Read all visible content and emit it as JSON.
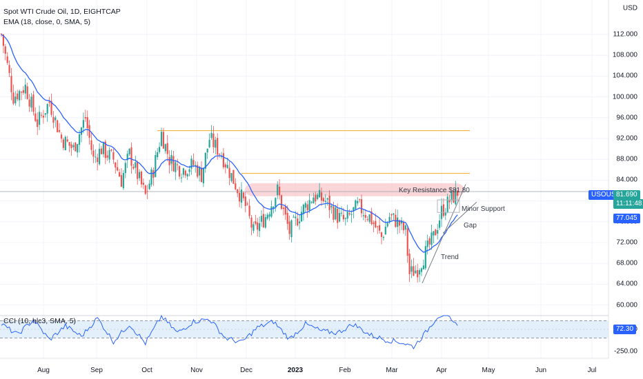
{
  "header": {
    "symbol_line": "Spot WTI Crude Oil, 1D, EIGHTCAP",
    "indicator_line": "EMA (18, close, 0, SMA, 5)",
    "cci_line": "CCI (10, hlc3, SMA, 5)"
  },
  "axis": {
    "currency": "USD",
    "price_ticks": [
      "112.000",
      "108.000",
      "104.000",
      "100.000",
      "96.000",
      "92.000",
      "88.000",
      "84.000",
      "76.000",
      "72.000",
      "68.000",
      "64.000",
      "60.000"
    ],
    "month_ticks": [
      "Aug",
      "Sep",
      "Oct",
      "Nov",
      "Dec",
      "2023",
      "Feb",
      "Mar",
      "Apr",
      "May",
      "Jun",
      "Jul"
    ],
    "cci_ticks": [
      "0.00",
      "-250.00"
    ]
  },
  "tags": {
    "symbol": "USOUSD",
    "price": "81.690",
    "countdown": "11:11:48",
    "ema": "77.045",
    "cci": "72.30"
  },
  "annotations": {
    "resistance": "Key Resistance $81.80",
    "minor_support": "Minor Support",
    "gap": "Gap",
    "trend": "Trend"
  },
  "colors": {
    "up": "#26a69a",
    "down": "#ef5350",
    "ema": "#2962ff",
    "resistance_zone": "#f8c8cc",
    "level_line": "#f5a623",
    "symbol_tag": "#2962ff",
    "cci_band": "#e3f0fc"
  },
  "chart_data": {
    "type": "candlestick",
    "title": "Spot WTI Crude Oil, 1D, EIGHTCAP",
    "ylim": [
      60,
      114
    ],
    "x_start": "2022-07-06",
    "x_end": "2023-04-11",
    "ema_period": 18,
    "levels": [
      93.5,
      85.3,
      81.8
    ],
    "close_path": [
      [
        0,
        112
      ],
      [
        6,
        100
      ],
      [
        12,
        102
      ],
      [
        18,
        95
      ],
      [
        24,
        99
      ],
      [
        30,
        92
      ],
      [
        36,
        90
      ],
      [
        42,
        96
      ],
      [
        46,
        88
      ],
      [
        50,
        90
      ],
      [
        56,
        88
      ],
      [
        60,
        84
      ],
      [
        64,
        89
      ],
      [
        68,
        85
      ],
      [
        72,
        81
      ],
      [
        76,
        86
      ],
      [
        80,
        93
      ],
      [
        84,
        88
      ],
      [
        90,
        86
      ],
      [
        96,
        87
      ],
      [
        100,
        85
      ],
      [
        104,
        92
      ],
      [
        110,
        89
      ],
      [
        116,
        84
      ],
      [
        122,
        79
      ],
      [
        126,
        74
      ],
      [
        132,
        77
      ],
      [
        138,
        82
      ],
      [
        144,
        74
      ],
      [
        150,
        78
      ],
      [
        156,
        81
      ],
      [
        162,
        80
      ],
      [
        168,
        77
      ],
      [
        172,
        76
      ],
      [
        178,
        79
      ],
      [
        184,
        77
      ],
      [
        190,
        73
      ],
      [
        194,
        77
      ],
      [
        198,
        76
      ],
      [
        202,
        74
      ],
      [
        204,
        66
      ],
      [
        208,
        67
      ],
      [
        212,
        70
      ],
      [
        216,
        73
      ],
      [
        220,
        78
      ],
      [
        224,
        80
      ],
      [
        228,
        81.7
      ]
    ],
    "cci_path": [
      [
        0,
        60
      ],
      [
        8,
        -60
      ],
      [
        16,
        110
      ],
      [
        24,
        -120
      ],
      [
        32,
        40
      ],
      [
        40,
        -80
      ],
      [
        48,
        130
      ],
      [
        56,
        -140
      ],
      [
        64,
        60
      ],
      [
        72,
        -160
      ],
      [
        80,
        150
      ],
      [
        88,
        -40
      ],
      [
        96,
        90
      ],
      [
        104,
        120
      ],
      [
        112,
        -100
      ],
      [
        120,
        -150
      ],
      [
        128,
        20
      ],
      [
        136,
        90
      ],
      [
        144,
        -110
      ],
      [
        152,
        60
      ],
      [
        160,
        -20
      ],
      [
        168,
        -40
      ],
      [
        176,
        60
      ],
      [
        184,
        -60
      ],
      [
        192,
        -120
      ],
      [
        200,
        -150
      ],
      [
        206,
        -200
      ],
      [
        212,
        -40
      ],
      [
        218,
        150
      ],
      [
        222,
        180
      ],
      [
        226,
        60
      ],
      [
        228,
        72.3
      ]
    ]
  }
}
